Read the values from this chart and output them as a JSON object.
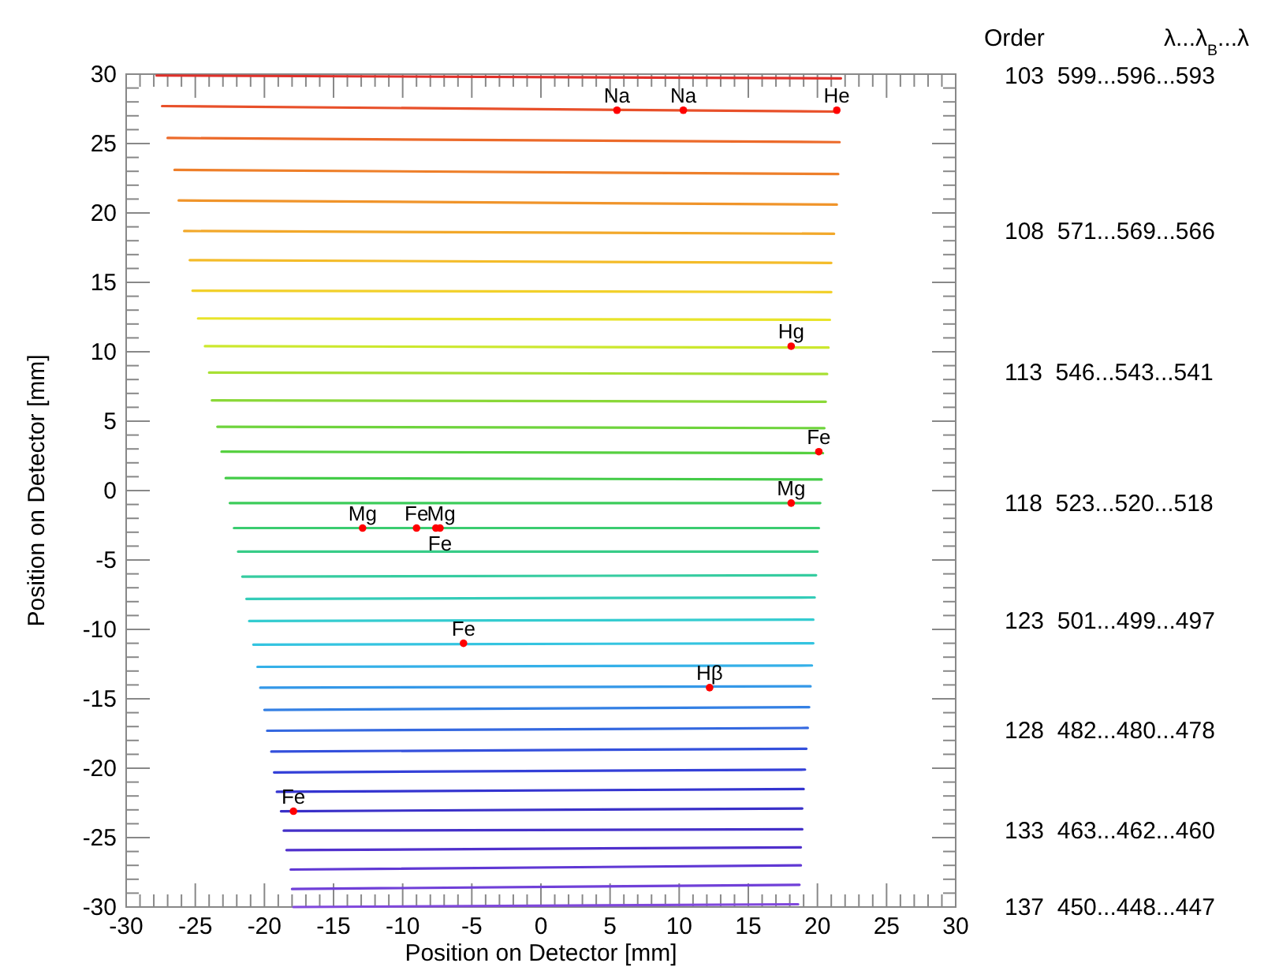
{
  "chart_data": {
    "type": "line",
    "xlabel": "Position on Detector [mm]",
    "ylabel": "Position on Detector [mm]",
    "xlim": [
      -30,
      30
    ],
    "ylim": [
      -30,
      30
    ],
    "xticks": [
      -30,
      {
        "value": -29,
        "label": null
      },
      {
        "value": -28,
        "label": null
      },
      {
        "value": -27,
        "label": null
      },
      {
        "value": -26,
        "label": null
      },
      -25,
      {
        "value": -24,
        "label": null
      },
      {
        "value": -23,
        "label": null
      },
      {
        "value": -22,
        "label": null
      },
      {
        "value": -21,
        "label": null
      },
      -20,
      {
        "value": -19,
        "label": null
      },
      {
        "value": -18,
        "label": null
      },
      {
        "value": -17,
        "label": null
      },
      {
        "value": -16,
        "label": null
      },
      -15,
      {
        "value": -14,
        "label": null
      },
      {
        "value": -13,
        "label": null
      },
      {
        "value": -12,
        "label": null
      },
      {
        "value": -11,
        "label": null
      },
      -10,
      {
        "value": -9,
        "label": null
      },
      {
        "value": -8,
        "label": null
      },
      {
        "value": -7,
        "label": null
      },
      {
        "value": -6,
        "label": null
      },
      -5,
      {
        "value": -4,
        "label": null
      },
      {
        "value": -3,
        "label": null
      },
      {
        "value": -2,
        "label": null
      },
      {
        "value": -1,
        "label": null
      },
      0,
      {
        "value": 1,
        "label": null
      },
      {
        "value": 2,
        "label": null
      },
      {
        "value": 3,
        "label": null
      },
      {
        "value": 4,
        "label": null
      },
      5,
      {
        "value": 6,
        "label": null
      },
      {
        "value": 7,
        "label": null
      },
      {
        "value": 8,
        "label": null
      },
      {
        "value": 9,
        "label": null
      },
      10,
      {
        "value": 11,
        "label": null
      },
      {
        "value": 12,
        "label": null
      },
      {
        "value": 13,
        "label": null
      },
      {
        "value": 14,
        "label": null
      },
      15,
      {
        "value": 16,
        "label": null
      },
      {
        "value": 17,
        "label": null
      },
      {
        "value": 18,
        "label": null
      },
      {
        "value": 19,
        "label": null
      },
      20,
      {
        "value": 21,
        "label": null
      },
      {
        "value": 22,
        "label": null
      },
      {
        "value": 23,
        "label": null
      },
      {
        "value": 24,
        "label": null
      },
      25,
      {
        "value": 26,
        "label": null
      },
      {
        "value": 27,
        "label": null
      },
      {
        "value": 28,
        "label": null
      },
      {
        "value": 29,
        "label": null
      },
      30
    ],
    "yticks": [
      -30,
      {
        "value": -29,
        "label": null
      },
      {
        "value": -28,
        "label": null
      },
      {
        "value": -27,
        "label": null
      },
      {
        "value": -26,
        "label": null
      },
      -25,
      {
        "value": -24,
        "label": null
      },
      {
        "value": -23,
        "label": null
      },
      {
        "value": -22,
        "label": null
      },
      {
        "value": -21,
        "label": null
      },
      -20,
      {
        "value": -19,
        "label": null
      },
      {
        "value": -18,
        "label": null
      },
      {
        "value": -17,
        "label": null
      },
      {
        "value": -16,
        "label": null
      },
      -15,
      {
        "value": -14,
        "label": null
      },
      {
        "value": -13,
        "label": null
      },
      {
        "value": -12,
        "label": null
      },
      {
        "value": -11,
        "label": null
      },
      -10,
      {
        "value": -9,
        "label": null
      },
      {
        "value": -8,
        "label": null
      },
      {
        "value": -7,
        "label": null
      },
      {
        "value": -6,
        "label": null
      },
      -5,
      {
        "value": -4,
        "label": null
      },
      {
        "value": -3,
        "label": null
      },
      {
        "value": -2,
        "label": null
      },
      {
        "value": -1,
        "label": null
      },
      0,
      {
        "value": 1,
        "label": null
      },
      {
        "value": 2,
        "label": null
      },
      {
        "value": 3,
        "label": null
      },
      {
        "value": 4,
        "label": null
      },
      5,
      {
        "value": 6,
        "label": null
      },
      {
        "value": 7,
        "label": null
      },
      {
        "value": 8,
        "label": null
      },
      {
        "value": 9,
        "label": null
      },
      10,
      {
        "value": 11,
        "label": null
      },
      {
        "value": 12,
        "label": null
      },
      {
        "value": 13,
        "label": null
      },
      {
        "value": 14,
        "label": null
      },
      15,
      {
        "value": 16,
        "label": null
      },
      {
        "value": 17,
        "label": null
      },
      {
        "value": 18,
        "label": null
      },
      {
        "value": 19,
        "label": null
      },
      20,
      {
        "value": 21,
        "label": null
      },
      {
        "value": 22,
        "label": null
      },
      {
        "value": 23,
        "label": null
      },
      {
        "value": 24,
        "label": null
      },
      25,
      {
        "value": 26,
        "label": null
      },
      {
        "value": 27,
        "label": null
      },
      {
        "value": 28,
        "label": null
      },
      {
        "value": 29,
        "label": null
      },
      30
    ],
    "series": [
      {
        "color": "#e0302a",
        "x": [
          -27.8,
          21.7
        ],
        "values": [
          29.9,
          29.7
        ]
      },
      {
        "color": "#e8502a",
        "x": [
          -27.4,
          21.5
        ],
        "values": [
          27.7,
          27.3
        ]
      },
      {
        "color": "#ec6a2a",
        "x": [
          -27.0,
          21.6
        ],
        "values": [
          25.4,
          25.1
        ]
      },
      {
        "color": "#ee7f2a",
        "x": [
          -26.5,
          21.5
        ],
        "values": [
          23.1,
          22.8
        ]
      },
      {
        "color": "#f0942a",
        "x": [
          -26.2,
          21.4
        ],
        "values": [
          20.9,
          20.6
        ]
      },
      {
        "color": "#f2a82a",
        "x": [
          -25.8,
          21.2
        ],
        "values": [
          18.7,
          18.5
        ]
      },
      {
        "color": "#f4bc2a",
        "x": [
          -25.4,
          21.0
        ],
        "values": [
          16.6,
          16.4
        ]
      },
      {
        "color": "#f2d02a",
        "x": [
          -25.2,
          21.0
        ],
        "values": [
          14.4,
          14.3
        ]
      },
      {
        "color": "#e8e42a",
        "x": [
          -24.8,
          20.9
        ],
        "values": [
          12.4,
          12.3
        ]
      },
      {
        "color": "#cce82e",
        "x": [
          -24.3,
          20.8
        ],
        "values": [
          10.4,
          10.3
        ]
      },
      {
        "color": "#a8e033",
        "x": [
          -24.0,
          20.7
        ],
        "values": [
          8.5,
          8.4
        ]
      },
      {
        "color": "#8ad838",
        "x": [
          -23.8,
          20.6
        ],
        "values": [
          6.5,
          6.4
        ]
      },
      {
        "color": "#6ed43c",
        "x": [
          -23.4,
          20.5
        ],
        "values": [
          4.6,
          4.5
        ]
      },
      {
        "color": "#56d040",
        "x": [
          -23.1,
          20.4
        ],
        "values": [
          2.8,
          2.7
        ]
      },
      {
        "color": "#44cc48",
        "x": [
          -22.8,
          20.3
        ],
        "values": [
          0.9,
          0.8
        ]
      },
      {
        "color": "#3ccc5a",
        "x": [
          -22.5,
          20.2
        ],
        "values": [
          -0.9,
          -0.9
        ]
      },
      {
        "color": "#3acc70",
        "x": [
          -22.2,
          20.1
        ],
        "values": [
          -2.7,
          -2.7
        ]
      },
      {
        "color": "#38cc88",
        "x": [
          -21.9,
          20.0
        ],
        "values": [
          -4.4,
          -4.4
        ]
      },
      {
        "color": "#36cca0",
        "x": [
          -21.6,
          19.9
        ],
        "values": [
          -6.2,
          -6.1
        ]
      },
      {
        "color": "#34ccb8",
        "x": [
          -21.3,
          19.8
        ],
        "values": [
          -7.8,
          -7.7
        ]
      },
      {
        "color": "#34ccd0",
        "x": [
          -21.1,
          19.7
        ],
        "values": [
          -9.4,
          -9.3
        ]
      },
      {
        "color": "#34c4e0",
        "x": [
          -20.8,
          19.7
        ],
        "values": [
          -11.1,
          -11.0
        ]
      },
      {
        "color": "#34b0e8",
        "x": [
          -20.5,
          19.6
        ],
        "values": [
          -12.7,
          -12.6
        ]
      },
      {
        "color": "#3498e8",
        "x": [
          -20.3,
          19.5
        ],
        "values": [
          -14.2,
          -14.1
        ]
      },
      {
        "color": "#3480e4",
        "x": [
          -20.0,
          19.4
        ],
        "values": [
          -15.8,
          -15.6
        ]
      },
      {
        "color": "#3468e0",
        "x": [
          -19.8,
          19.3
        ],
        "values": [
          -17.3,
          -17.1
        ]
      },
      {
        "color": "#3450dc",
        "x": [
          -19.5,
          19.2
        ],
        "values": [
          -18.8,
          -18.6
        ]
      },
      {
        "color": "#3440d8",
        "x": [
          -19.3,
          19.1
        ],
        "values": [
          -20.3,
          -20.1
        ]
      },
      {
        "color": "#3434d0",
        "x": [
          -19.1,
          19.0
        ],
        "values": [
          -21.7,
          -21.5
        ]
      },
      {
        "color": "#3a30c8",
        "x": [
          -18.8,
          18.9
        ],
        "values": [
          -23.1,
          -22.9
        ]
      },
      {
        "color": "#4430c8",
        "x": [
          -18.6,
          18.9
        ],
        "values": [
          -24.5,
          -24.4
        ]
      },
      {
        "color": "#5030cc",
        "x": [
          -18.4,
          18.8
        ],
        "values": [
          -25.9,
          -25.7
        ]
      },
      {
        "color": "#6038d4",
        "x": [
          -18.1,
          18.8
        ],
        "values": [
          -27.3,
          -27.0
        ]
      },
      {
        "color": "#7040d8",
        "x": [
          -18.0,
          18.7
        ],
        "values": [
          -28.7,
          -28.4
        ]
      },
      {
        "color": "#8048dc",
        "x": [
          -17.9,
          18.6
        ],
        "values": [
          -30.0,
          -29.8
        ]
      },
      {
        "type": "scatter",
        "marker": "circle",
        "color": "#ff0000",
        "x": [
          5.5,
          10.3,
          21.4,
          18.1,
          20.1,
          18.1,
          -12.9,
          -9.0,
          -7.6,
          -7.3,
          -5.6,
          12.2,
          -17.9
        ],
        "values": [
          27.4,
          27.4,
          27.4,
          10.4,
          2.8,
          -0.9,
          -2.7,
          -2.7,
          -2.7,
          -2.7,
          -11.0,
          -14.2,
          -23.1
        ]
      }
    ],
    "annotations": [
      {
        "text": "Na",
        "x": 5.5,
        "y": 27.4
      },
      {
        "text": "Na",
        "x": 10.3,
        "y": 27.4
      },
      {
        "text": "He",
        "x": 21.4,
        "y": 27.4
      },
      {
        "text": "Hg",
        "x": 18.1,
        "y": 10.4
      },
      {
        "text": "Fe",
        "x": 20.1,
        "y": 2.8
      },
      {
        "text": "Mg",
        "x": 18.1,
        "y": -0.9
      },
      {
        "text": "Mg",
        "x": -12.9,
        "y": -2.7
      },
      {
        "text": "Fe",
        "x": -9.0,
        "y": -2.7
      },
      {
        "text": "Mg",
        "x": -7.6,
        "y": -2.7
      },
      {
        "text": "Fe",
        "x": -7.3,
        "y": -2.7
      },
      {
        "text": "Fe",
        "x": -5.6,
        "y": -11.0
      },
      {
        "text": "Hβ",
        "x": 12.2,
        "y": -14.2
      },
      {
        "text": "Fe",
        "x": -17.9,
        "y": -23.1
      },
      "Order",
      "λ...λ$_{B}$...λ",
      "103  599...596...593",
      "108  571...569...566",
      "113  546...543...541",
      "118  523...520...518",
      "123  501...499...497",
      "128  482...480...478",
      "133  463...462...460",
      "137  450...448...447"
    ]
  }
}
